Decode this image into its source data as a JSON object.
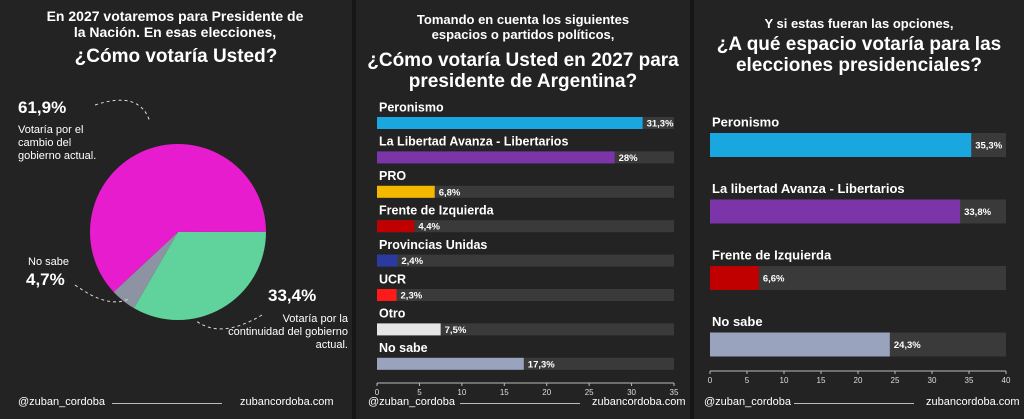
{
  "chart_data": [
    {
      "type": "pie",
      "title_intro": "En 2027 votaremos para Presidente de la Nación. En esas elecciones,",
      "title": "¿Cómo votaría Usted?",
      "labels": [
        "Votaría por el cambio del gobierno actual.",
        "Votaría por la continuidad del gobierno actual.",
        "No sabe"
      ],
      "values": [
        61.9,
        33.4,
        4.7
      ],
      "value_labels": [
        "61,9%",
        "33,4%",
        "4,7%"
      ],
      "colors": [
        "#e81ccf",
        "#5fd39b",
        "#8e93a3"
      ],
      "footer_left": "@zuban_cordoba",
      "footer_right": "zubancordoba.com"
    },
    {
      "type": "barh",
      "title_intro": "Tomando en cuenta los siguientes espacios o partidos políticos,",
      "title": "¿Cómo votaría Usted en 2027 para presidente de Argentina?",
      "categories": [
        "Peronismo",
        "La Libertad Avanza - Libertarios",
        "PRO",
        "Frente de Izquierda",
        "Provincias Unidas",
        "UCR",
        "Otro",
        "No sabe"
      ],
      "values": [
        31.3,
        28,
        6.8,
        4.4,
        2.4,
        2.3,
        7.5,
        17.3
      ],
      "value_labels": [
        "31,3%",
        "28%",
        "6,8%",
        "4,4%",
        "2,4%",
        "2,3%",
        "7,5%",
        "17,3%"
      ],
      "colors": [
        "#1aa7e0",
        "#7b35a8",
        "#f5b800",
        "#c00000",
        "#2b3a9e",
        "#ff1a1a",
        "#e6e6e6",
        "#9aa3bd"
      ],
      "xlim": [
        0,
        35
      ],
      "xticks": [
        0,
        5,
        10,
        15,
        20,
        25,
        30,
        35
      ],
      "footer_left": "@zuban_cordoba",
      "footer_right": "zubancordoba.com"
    },
    {
      "type": "barh",
      "title_intro": "Y si estas fueran las opciones,",
      "title": "¿A qué espacio votaría para las elecciones presidenciales?",
      "categories": [
        "Peronismo",
        "La libertad Avanza - Libertarios",
        "Frente de Izquierda",
        "No sabe"
      ],
      "values": [
        35.3,
        33.8,
        6.6,
        24.3
      ],
      "value_labels": [
        "35,3%",
        "33,8%",
        "6,6%",
        "24,3%"
      ],
      "colors": [
        "#1aa7e0",
        "#7b35a8",
        "#c00000",
        "#9aa3bd"
      ],
      "xlim": [
        0,
        40
      ],
      "xticks": [
        0,
        5,
        10,
        15,
        20,
        25,
        30,
        35,
        40
      ],
      "footer_left": "@zuban_cordoba",
      "footer_right": "zubancordoba.com"
    }
  ]
}
